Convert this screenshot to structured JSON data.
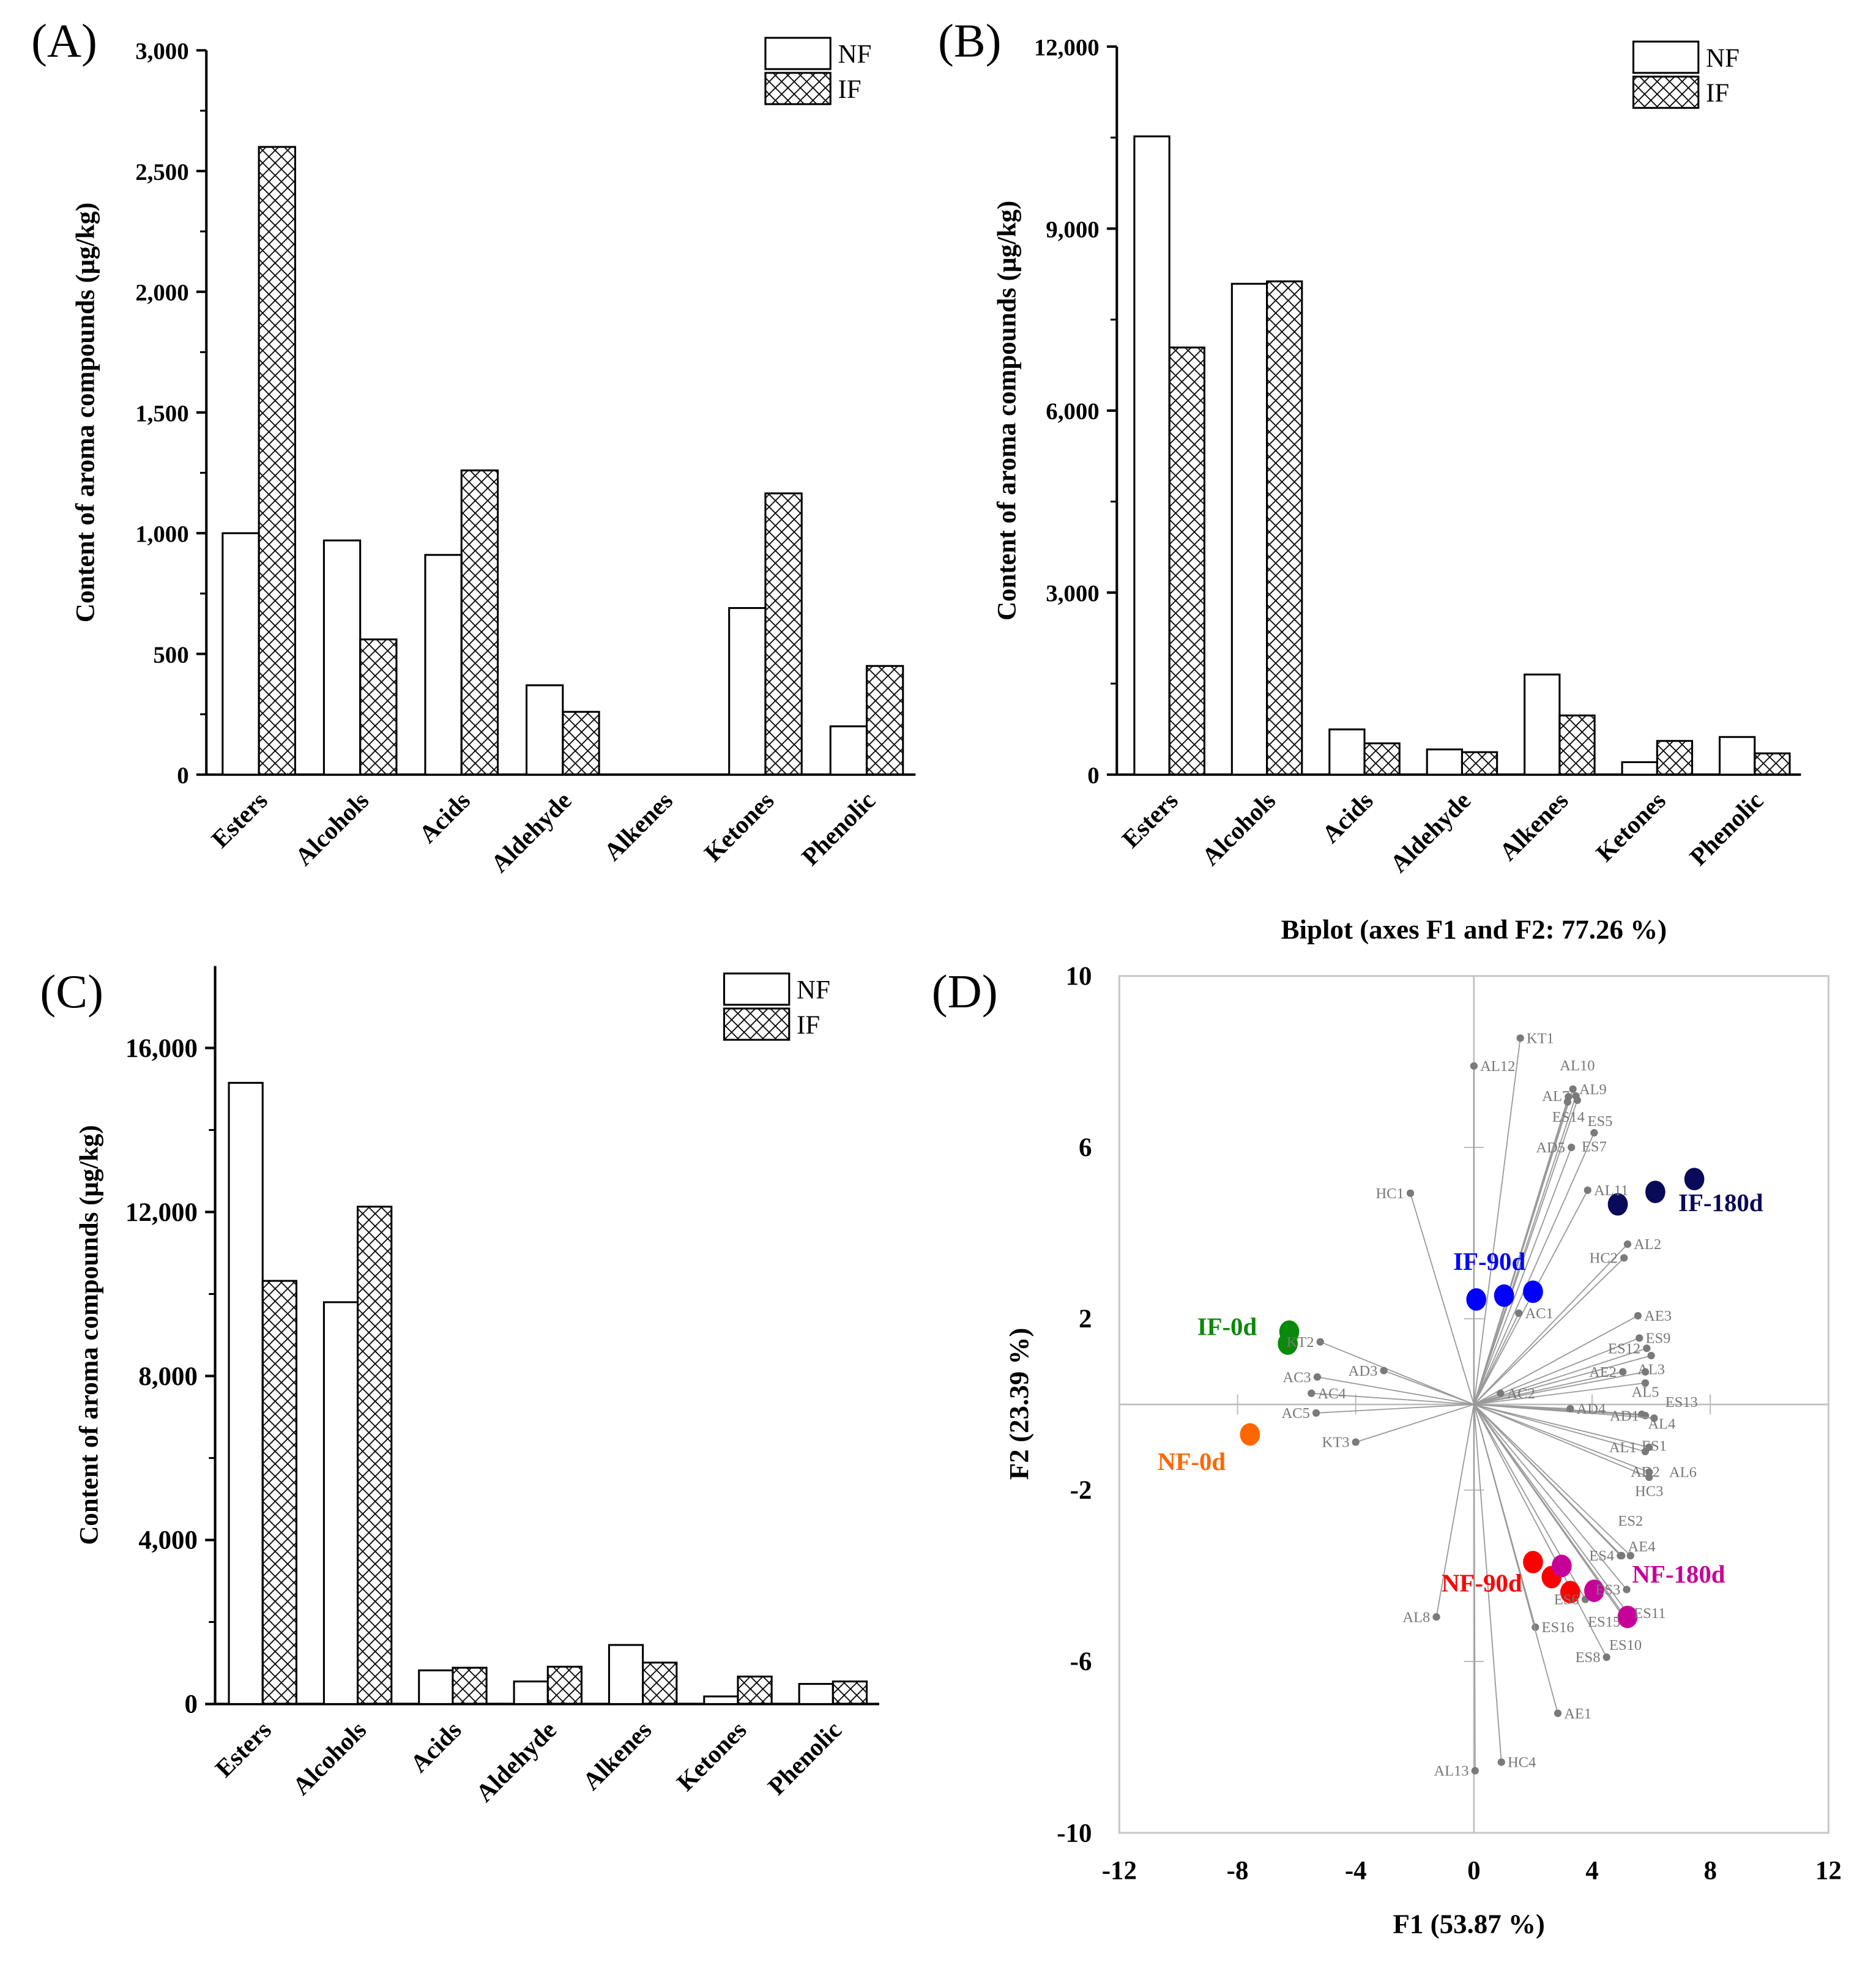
{
  "chart_data": [
    {
      "panel": "(A)",
      "type": "bar",
      "categories": [
        "Esters",
        "Alcohols",
        "Acids",
        "Aldehyde",
        "Alkenes",
        "Ketones",
        "Phenolic"
      ],
      "series": [
        {
          "name": "NF",
          "values": [
            1000,
            970,
            910,
            370,
            0,
            690,
            200
          ]
        },
        {
          "name": "IF",
          "values": [
            2600,
            560,
            1260,
            260,
            0,
            1165,
            450
          ]
        }
      ],
      "ylabel": "Content of aroma compounds (μg/kg)",
      "yticks": [
        "0",
        "500",
        "1,000",
        "1,500",
        "2,000",
        "2,500",
        "3,000"
      ],
      "ylim": [
        0,
        3000
      ],
      "legend": "top-right"
    },
    {
      "panel": "(B)",
      "type": "bar",
      "categories": [
        "Esters",
        "Alcohols",
        "Acids",
        "Aldehyde",
        "Alkenes",
        "Ketones",
        "Phenolic"
      ],
      "series": [
        {
          "name": "NF",
          "values": [
            10520,
            8090,
            745,
            415,
            1650,
            205,
            620
          ]
        },
        {
          "name": "IF",
          "values": [
            7040,
            8130,
            515,
            370,
            975,
            555,
            350
          ]
        }
      ],
      "ylabel": "Content of aroma compounds (μg/kg)",
      "yticks": [
        "0",
        "3,000",
        "6,000",
        "9,000",
        "12,000"
      ],
      "ylim": [
        0,
        12000
      ],
      "legend": "top-right"
    },
    {
      "panel": "(C)",
      "type": "bar",
      "categories": [
        "Esters",
        "Alcohols",
        "Acids",
        "Aldehyde",
        "Alkenes",
        "Ketones",
        "Phenolic"
      ],
      "series": [
        {
          "name": "NF",
          "values": [
            15150,
            9800,
            820,
            550,
            1440,
            185,
            490
          ]
        },
        {
          "name": "IF",
          "values": [
            10320,
            12130,
            885,
            910,
            1010,
            670,
            550
          ]
        }
      ],
      "ylabel": "Content of aroma compounds (μg/kg)",
      "yticks": [
        "0",
        "4,000",
        "8,000",
        "12,000",
        "16,000"
      ],
      "ylim": [
        0,
        18000
      ],
      "legend": "top-right"
    },
    {
      "panel": "(D)",
      "type": "scatter",
      "title": "Biplot (axes F1 and F2: 77.26 %)",
      "xlabel": "F1 (53.87 %)",
      "ylabel": "F2 (23.39 %)",
      "xlim": [
        -12,
        12
      ],
      "ylim": [
        -10,
        10
      ],
      "xticks": [
        "-12",
        "-8",
        "-4",
        "0",
        "4",
        "8",
        "12"
      ],
      "yticks": [
        "-10",
        "-6",
        "-2",
        "2",
        "6",
        "10"
      ],
      "loadings": [
        {
          "label": "KT1",
          "x": 1.57,
          "y": 8.55
        },
        {
          "label": "AL12",
          "x": 0.0,
          "y": 7.9
        },
        {
          "label": "AL9",
          "x": 3.35,
          "y": 7.36
        },
        {
          "label": "AL7",
          "x": 3.45,
          "y": 7.2
        },
        {
          "label": "ES14",
          "x": 3.2,
          "y": 7.18
        },
        {
          "label": "ES5",
          "x": 3.17,
          "y": 7.06
        },
        {
          "label": "AL10",
          "x": 3.5,
          "y": 7.1
        },
        {
          "label": "ES7",
          "x": 4.07,
          "y": 6.34
        },
        {
          "label": "AD5",
          "x": 3.3,
          "y": 6.0
        },
        {
          "label": "AL11",
          "x": 3.85,
          "y": 5.0
        },
        {
          "label": "HC1",
          "x": -2.15,
          "y": 4.93
        },
        {
          "label": "AL2",
          "x": 5.2,
          "y": 3.74
        },
        {
          "label": "HC2",
          "x": 5.08,
          "y": 3.42
        },
        {
          "label": "AC1",
          "x": 1.52,
          "y": 2.13
        },
        {
          "label": "AE3",
          "x": 5.55,
          "y": 2.07
        },
        {
          "label": "ES9",
          "x": 5.6,
          "y": 1.55
        },
        {
          "label": "ES12",
          "x": 5.85,
          "y": 1.31
        },
        {
          "label": "AL3",
          "x": 6.0,
          "y": 1.14
        },
        {
          "label": "AE2",
          "x": 5.04,
          "y": 0.76
        },
        {
          "label": "AL5",
          "x": 5.8,
          "y": 0.76
        },
        {
          "label": "ES13",
          "x": 5.8,
          "y": 0.5
        },
        {
          "label": "AD1",
          "x": 5.8,
          "y": -0.26
        },
        {
          "label": "AL4",
          "x": 5.68,
          "y": -0.23
        },
        {
          "label": "ES1",
          "x": 6.1,
          "y": -0.32
        },
        {
          "label": "AL1",
          "x": 5.93,
          "y": -1.0
        },
        {
          "label": "AD2",
          "x": 5.8,
          "y": -1.1
        },
        {
          "label": "HC3",
          "x": 5.93,
          "y": -1.7
        },
        {
          "label": "AL6",
          "x": 5.93,
          "y": -1.58
        },
        {
          "label": "AD4",
          "x": 3.26,
          "y": -0.1
        },
        {
          "label": "AC2",
          "x": 0.9,
          "y": 0.26
        },
        {
          "label": "KT2",
          "x": -5.2,
          "y": 1.46
        },
        {
          "label": "AD3",
          "x": -3.05,
          "y": 0.79
        },
        {
          "label": "AC3",
          "x": -5.3,
          "y": 0.64
        },
        {
          "label": "AC4",
          "x": -5.5,
          "y": 0.26
        },
        {
          "label": "AC5",
          "x": -5.34,
          "y": -0.2
        },
        {
          "label": "KT3",
          "x": -4.0,
          "y": -0.88
        },
        {
          "label": "ES4",
          "x": 4.96,
          "y": -3.53
        },
        {
          "label": "AE4",
          "x": 5.0,
          "y": -3.53
        },
        {
          "label": "ES2",
          "x": 5.3,
          "y": -3.53
        },
        {
          "label": "ES3",
          "x": 5.17,
          "y": -4.32
        },
        {
          "label": "ES6",
          "x": 3.77,
          "y": -4.55
        },
        {
          "label": "ES11",
          "x": 5.2,
          "y": -4.87
        },
        {
          "label": "ES15",
          "x": 5.17,
          "y": -5.07
        },
        {
          "label": "ES10",
          "x": 5.13,
          "y": -4.97
        },
        {
          "label": "ES16",
          "x": 2.08,
          "y": -5.2
        },
        {
          "label": "AL8",
          "x": -1.27,
          "y": -4.96
        },
        {
          "label": "ES8",
          "x": 4.49,
          "y": -5.9
        },
        {
          "label": "AE1",
          "x": 2.84,
          "y": -7.21
        },
        {
          "label": "HC4",
          "x": 0.93,
          "y": -8.35
        },
        {
          "label": "AL13",
          "x": 0.04,
          "y": -8.55
        }
      ],
      "groups": [
        {
          "name": "IF-180d",
          "color": "#0a0a5a",
          "points": [
            [
              4.87,
              4.67
            ],
            [
              6.14,
              4.96
            ],
            [
              7.46,
              5.26
            ]
          ]
        },
        {
          "name": "IF-90d",
          "color": "#0000ff",
          "points": [
            [
              0.08,
              2.45
            ],
            [
              1.02,
              2.54
            ],
            [
              2.0,
              2.63
            ]
          ]
        },
        {
          "name": "IF-0d",
          "color": "#0a8a0a",
          "points": [
            [
              -6.25,
              1.7
            ],
            [
              -6.3,
              1.42
            ]
          ]
        },
        {
          "name": "NF-0d",
          "color": "#ff6600",
          "points": [
            [
              -7.58,
              -0.7
            ]
          ]
        },
        {
          "name": "NF-90d",
          "color": "#ff0000",
          "points": [
            [
              2.0,
              -3.68
            ],
            [
              2.63,
              -4.03
            ],
            [
              3.26,
              -4.38
            ]
          ]
        },
        {
          "name": "NF-180d",
          "color": "#c8009a",
          "points": [
            [
              2.97,
              -3.77
            ],
            [
              4.07,
              -4.35
            ],
            [
              5.2,
              -4.96
            ]
          ]
        }
      ]
    }
  ]
}
